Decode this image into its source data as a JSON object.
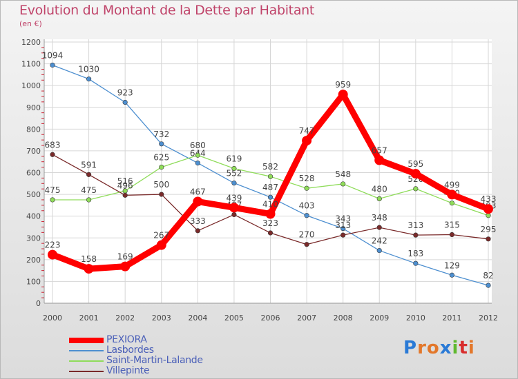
{
  "header": {
    "title": "Evolution du Montant de la Dette par Habitant",
    "subtitle": "(en €)"
  },
  "brand": {
    "letters": [
      "P",
      "r",
      "o",
      "x",
      "i",
      "t",
      "i"
    ]
  },
  "chart_data": {
    "type": "line",
    "title": "Evolution du Montant de la Dette par Habitant",
    "ylabel": "(en €)",
    "x": [
      2000,
      2001,
      2002,
      2003,
      2004,
      2005,
      2006,
      2007,
      2008,
      2009,
      2010,
      2011,
      2012
    ],
    "ylim": [
      0,
      1200
    ],
    "yticks": [
      0,
      100,
      200,
      300,
      400,
      500,
      600,
      700,
      800,
      900,
      1000,
      1100,
      1200
    ],
    "grid": true,
    "legend_position": "bottom-left",
    "series": [
      {
        "name": "PEXIORA",
        "color": "#ff0000",
        "emphasis": true,
        "values": [
          223,
          158,
          169,
          267,
          467,
          439,
          410,
          747,
          959,
          657,
          595,
          499,
          433
        ]
      },
      {
        "name": "Lasbordes",
        "color": "#4d8fd0",
        "emphasis": false,
        "values": [
          1094,
          1030,
          923,
          732,
          644,
          552,
          487,
          403,
          343,
          242,
          183,
          129,
          82
        ]
      },
      {
        "name": "Saint-Martin-Lalande",
        "color": "#8fdc5a",
        "emphasis": false,
        "values": [
          475,
          475,
          516,
          625,
          680,
          619,
          582,
          528,
          548,
          480,
          526,
          460,
          403
        ]
      },
      {
        "name": "Villepinte",
        "color": "#7a2a2a",
        "emphasis": false,
        "values": [
          683,
          591,
          496,
          500,
          333,
          407,
          323,
          270,
          313,
          348,
          313,
          315,
          295
        ]
      }
    ]
  }
}
